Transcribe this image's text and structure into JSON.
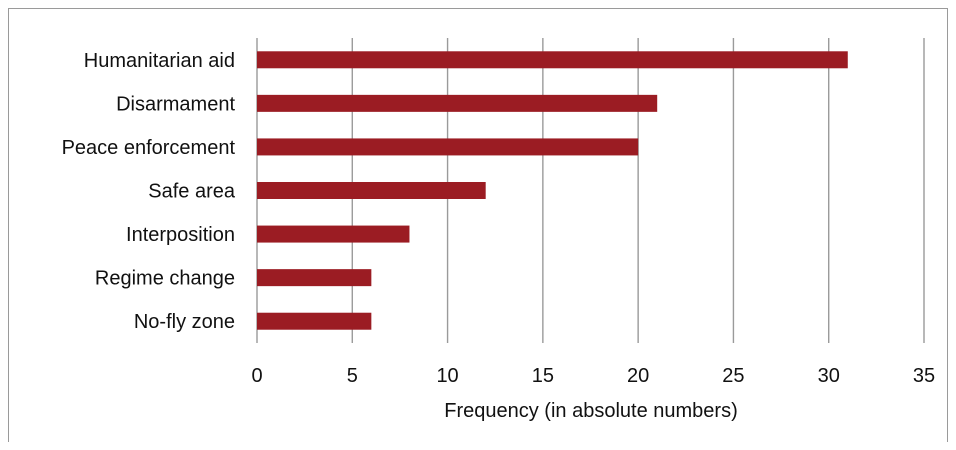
{
  "chart_data": {
    "type": "bar",
    "orientation": "horizontal",
    "categories": [
      "Humanitarian aid",
      "Disarmament",
      "Peace enforcement",
      "Safe area",
      "Interposition",
      "Regime change",
      "No-fly zone"
    ],
    "values": [
      31,
      21,
      20,
      12,
      8,
      6,
      6
    ],
    "xlabel": "Frequency (in absolute numbers)",
    "ylabel": "",
    "xlim": [
      0,
      35
    ],
    "xticks": [
      0,
      5,
      10,
      15,
      20,
      25,
      30,
      35
    ],
    "grid": true,
    "bar_color": "#9b1c23",
    "grid_color": "#9a9a9a"
  }
}
